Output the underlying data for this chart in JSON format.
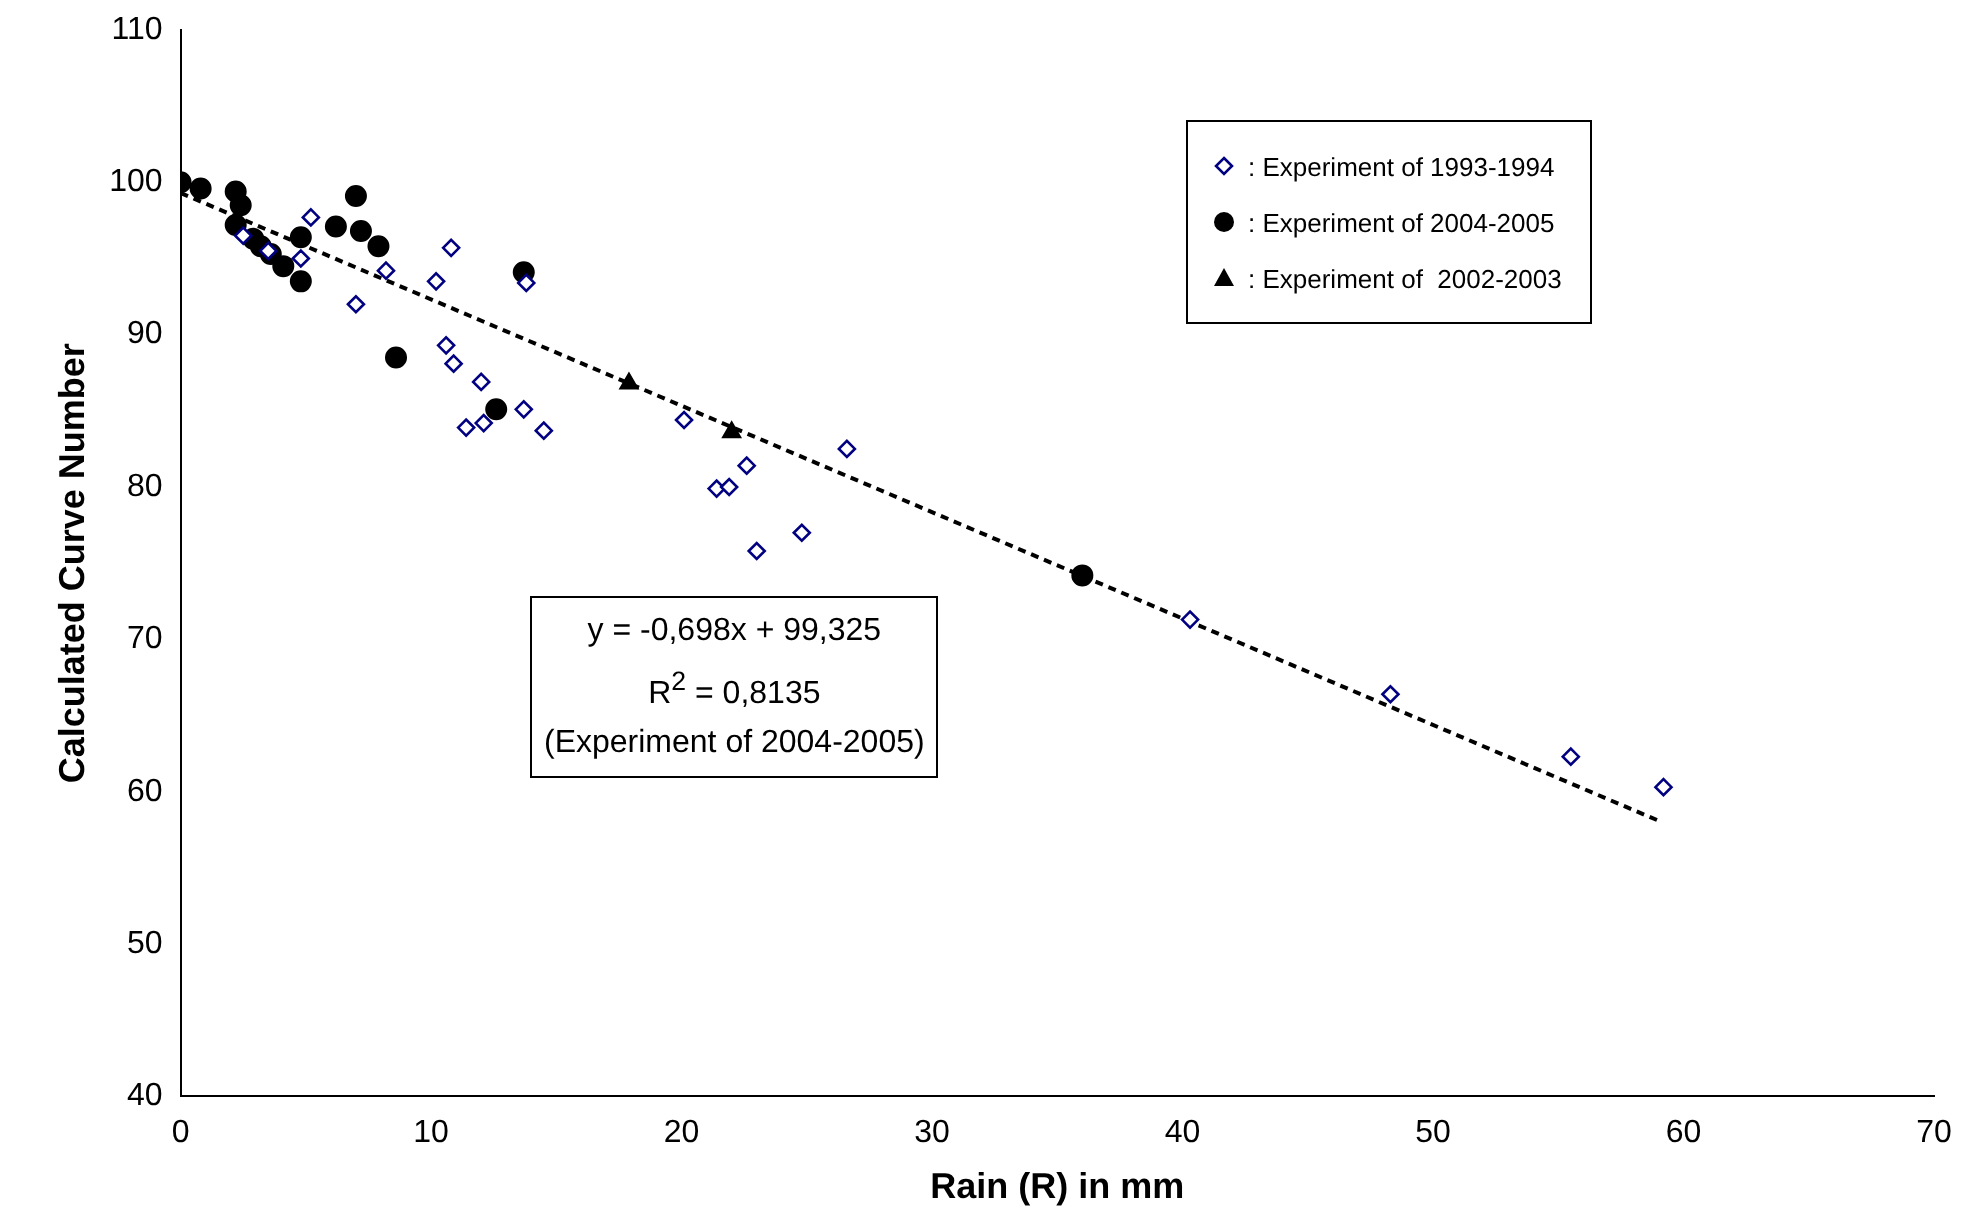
{
  "chart_data": {
    "type": "scatter",
    "xlabel": "Rain (R) in mm",
    "ylabel": "Calculated Curve Number",
    "xlim": [
      0,
      70
    ],
    "xticks": [
      0,
      10,
      20,
      30,
      40,
      50,
      60,
      70
    ],
    "ylim": [
      40,
      110
    ],
    "yticks": [
      40,
      50,
      60,
      70,
      80,
      90,
      100,
      110
    ],
    "grid": false,
    "legend": "top right",
    "series": [
      {
        "name": ": Experiment of 1993-1994",
        "color": "#000080",
        "marker": "diamond",
        "x": [
          2.5,
          3.5,
          4.8,
          5.2,
          7,
          8.2,
          10.2,
          10.8,
          10.6,
          10.9,
          11.4,
          12,
          12.1,
          13.7,
          13.8,
          14.5,
          20.1,
          21.4,
          21.9,
          22.6,
          23,
          24.8,
          26.6,
          40.3,
          48.3,
          55.5,
          59.2
        ],
        "values": [
          96.5,
          95.5,
          95.0,
          97.7,
          92,
          94.2,
          93.5,
          95.7,
          89.3,
          88.1,
          83.9,
          86.9,
          84.2,
          85.1,
          93.4,
          83.7,
          84.4,
          79.9,
          80.0,
          81.4,
          75.8,
          77,
          82.5,
          71.3,
          66.4,
          62.3,
          60.3
        ]
      },
      {
        "name": ": Experiment of 2004-2005",
        "color": "#000000",
        "marker": "circle",
        "x": [
          0,
          0.8,
          2.2,
          2.4,
          2.2,
          2.9,
          3.2,
          3.6,
          4.1,
          4.8,
          4.8,
          6.2,
          7.0,
          7.2,
          7.9,
          8.6,
          12.6,
          13.7,
          36.0
        ],
        "values": [
          100,
          99.6,
          99.4,
          98.5,
          97.2,
          96.3,
          95.8,
          95.3,
          94.5,
          93.5,
          96.4,
          97.1,
          99.1,
          96.8,
          95.8,
          88.5,
          85.1,
          94.1,
          74.2
        ]
      },
      {
        "name": ": Experiment of  2002-2003",
        "color": "#000000",
        "marker": "triangle",
        "x": [
          17.9,
          22
        ],
        "values": [
          86.8,
          83.6
        ]
      },
      {
        "type": "line",
        "color": "#000000",
        "marker": "none",
        "line_style": "dashed",
        "x": [
          0,
          59
        ],
        "values": [
          99.3,
          58.1
        ]
      }
    ],
    "annotations": [
      "y = -0,698x + 99,325",
      "R$^{2}$ = 0,8135",
      "(Experiment of 2004-2005)"
    ]
  }
}
